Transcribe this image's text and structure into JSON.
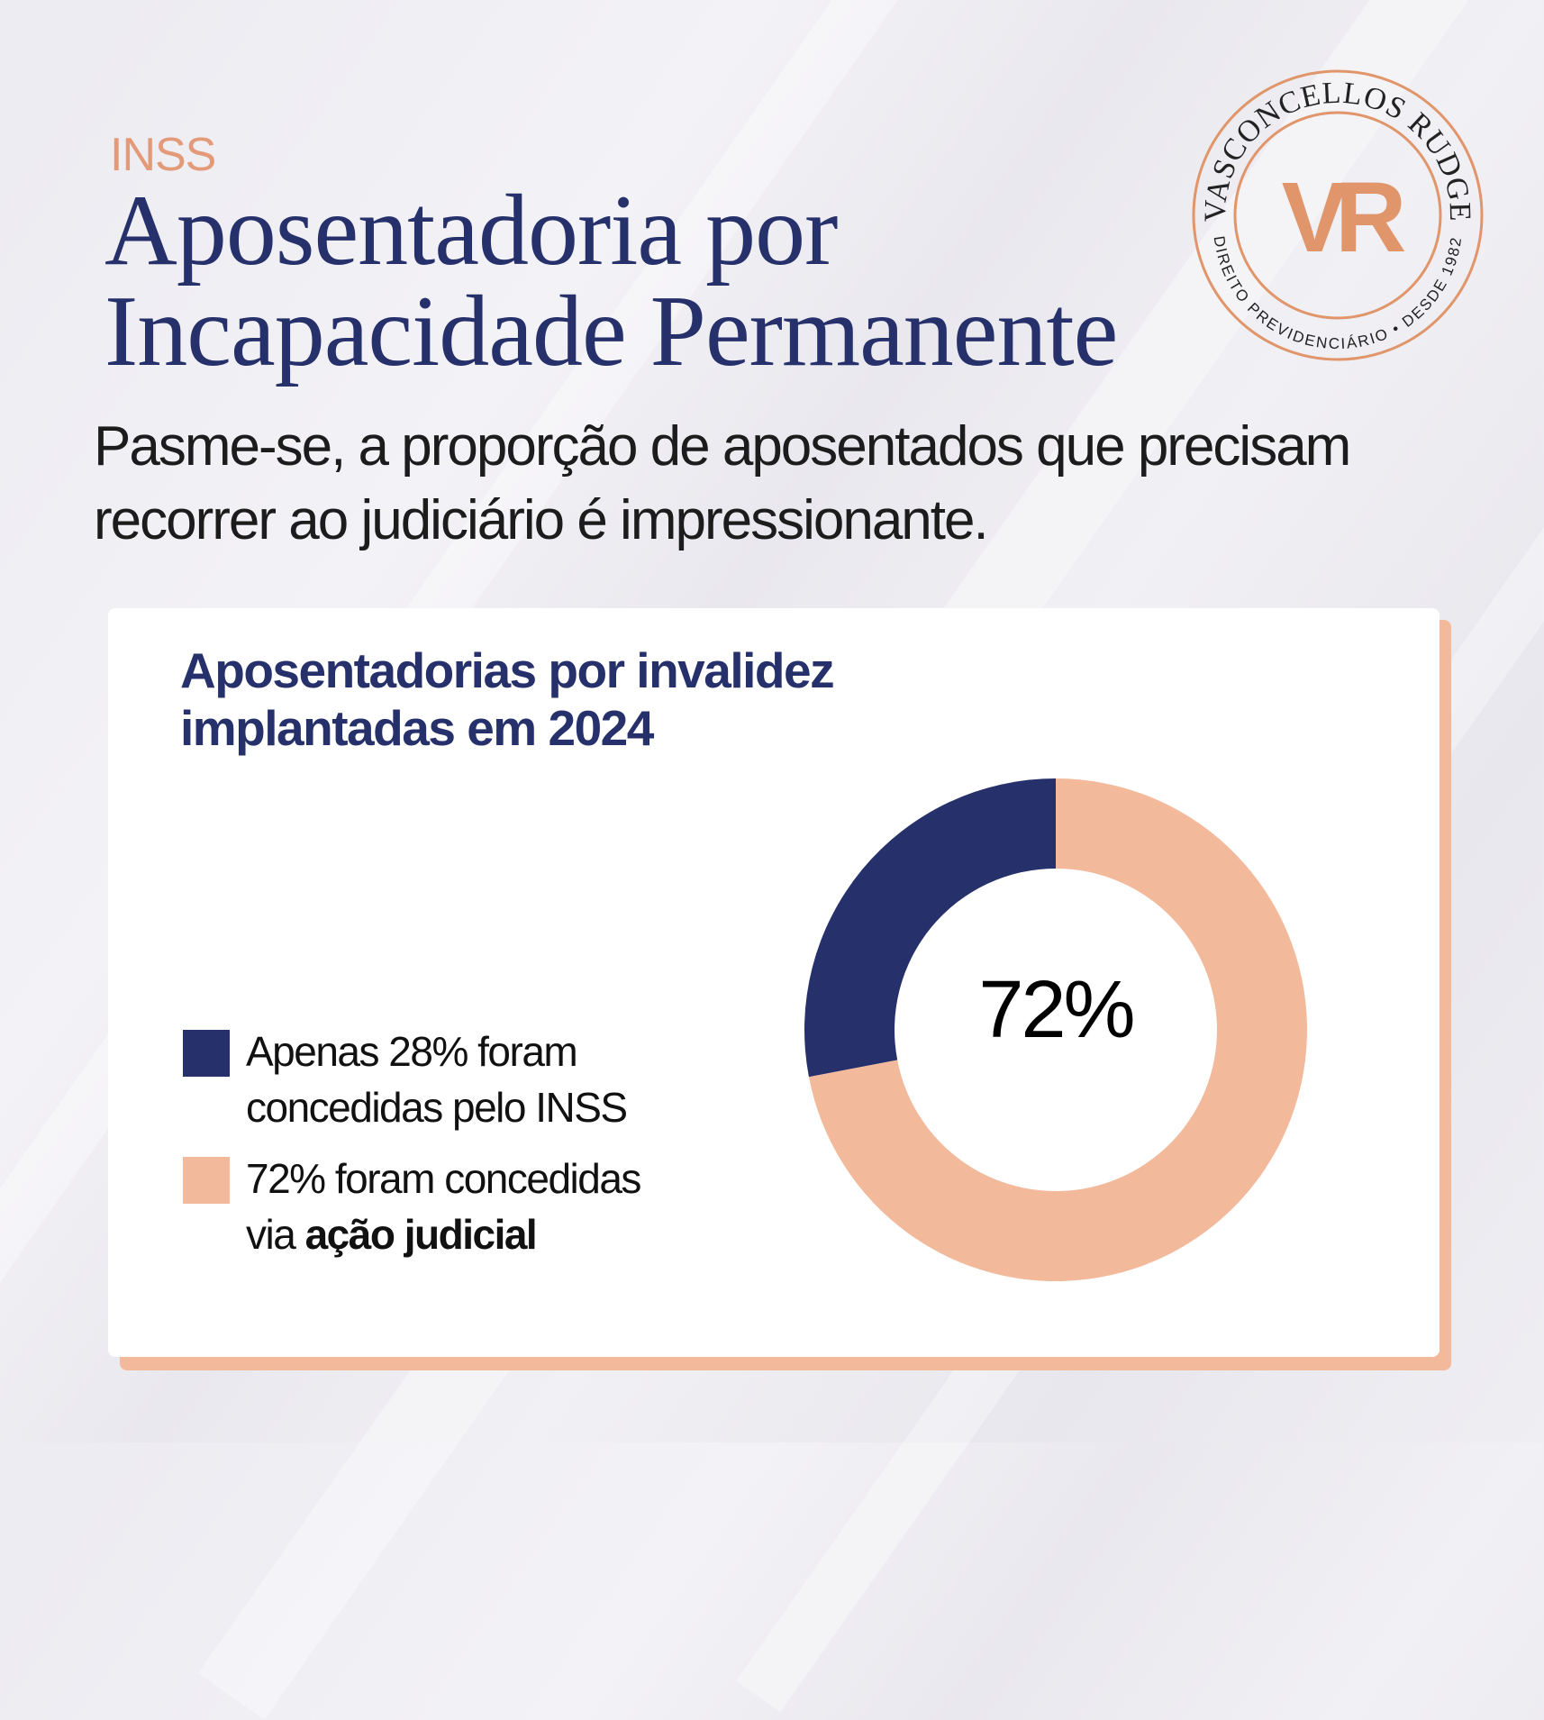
{
  "header": {
    "kicker": "INSS",
    "title_line1": "Aposentadoria por",
    "title_line2": "Incapacidade Permanente",
    "subtitle_line1": "Pasme-se, a proporção de aposentados que precisam",
    "subtitle_line2": "recorrer ao judiciário é impressionante."
  },
  "logo": {
    "monogram": "VR",
    "top_text": "VASCONCELLOS RUDGE",
    "bottom_text": "DIREITO PREVIDENCIÁRIO • DESDE 1982",
    "color": "#e0956a"
  },
  "chart_data": {
    "type": "pie",
    "variant": "donut",
    "title_line1": "Aposentadorias por invalidez",
    "title_line2": "implantadas em 2024",
    "center_label": "72%",
    "slices": [
      {
        "value": 28,
        "color": "#26306a"
      },
      {
        "value": 72,
        "color": "#f3b99b"
      }
    ],
    "legend": [
      {
        "line1": "Apenas 28% foram",
        "line2": "concedidas pelo INSS",
        "color": "#26306a"
      },
      {
        "line1": "72% foram concedidas",
        "line2_prefix": "via ",
        "line2_bold": "ação judicial",
        "color": "#f3b99b"
      }
    ],
    "legend_position": "left"
  }
}
